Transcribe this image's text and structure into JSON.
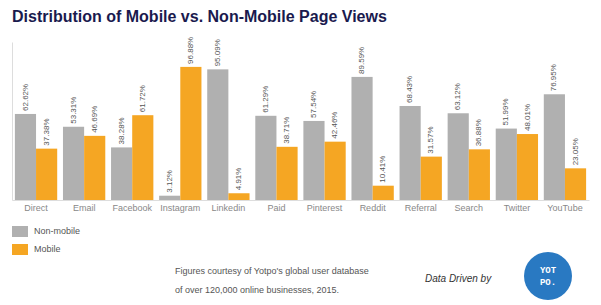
{
  "chart_data": {
    "type": "bar",
    "title": "Distribution of Mobile vs. Non-Mobile Page Views",
    "categories": [
      "Direct",
      "Email",
      "Facebook",
      "Instagram",
      "Linkedin",
      "Paid",
      "Pinterest",
      "Reddit",
      "Referral",
      "Search",
      "Twitter",
      "YouTube"
    ],
    "series": [
      {
        "name": "Non-mobile",
        "color": "#b0b0b0",
        "values": [
          62.62,
          53.31,
          38.28,
          3.12,
          95.09,
          61.29,
          57.54,
          89.59,
          68.43,
          63.12,
          51.99,
          76.95
        ],
        "value_labels": [
          "62.62%",
          "53.31%",
          "38.28%",
          "3.12%",
          "95.09%",
          "61.29%",
          "57.54%",
          "89.59%",
          "68.43%",
          "63.12%",
          "51.99%",
          "76.95%"
        ]
      },
      {
        "name": "Mobile",
        "color": "#f5a623",
        "values": [
          37.38,
          46.69,
          61.72,
          96.88,
          4.91,
          38.71,
          42.46,
          10.41,
          31.57,
          36.88,
          48.01,
          23.05
        ],
        "value_labels": [
          "37.38%",
          "46.69%",
          "61.72%",
          "96.88%",
          "4.91%",
          "38.71%",
          "42.46%",
          "10.41%",
          "31.57%",
          "36.88%",
          "48.01%",
          "23.05%"
        ]
      }
    ],
    "ylim": [
      0,
      115
    ],
    "grid": false,
    "legend": "lower left",
    "data_labels": true,
    "tick_labels": "x",
    "annotations": [
      "Figures courtesy of Yotpo's global user database",
      "of over 120,000 online businesses, 2015.",
      "Data Driven by",
      "YOT",
      "PO."
    ]
  }
}
